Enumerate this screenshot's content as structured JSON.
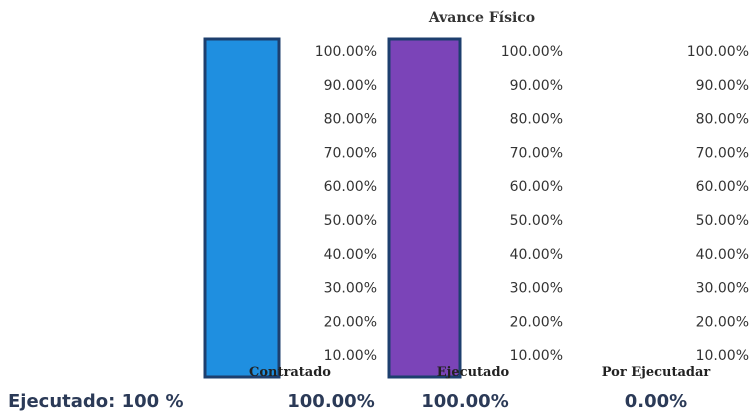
{
  "chart_data": {
    "type": "bar",
    "title": "Avance Físico",
    "categories": [
      "Contratado",
      "Ejecutado",
      "Por Ejecutadar"
    ],
    "values": [
      100,
      100,
      0
    ],
    "ylim": [
      0,
      100
    ],
    "yticks": [
      "100.00%",
      "90.00%",
      "80.00%",
      "70.00%",
      "60.00%",
      "50.00%",
      "40.00%",
      "30.00%",
      "20.00%",
      "10.00%"
    ],
    "value_labels": [
      "100.00%",
      "100.00%",
      "0.00%"
    ],
    "colors": [
      "#1f8fe0",
      "#7b44b8",
      "#f08bb0"
    ],
    "grid": false
  },
  "summary": {
    "label": "Ejecutado: 100 %"
  }
}
